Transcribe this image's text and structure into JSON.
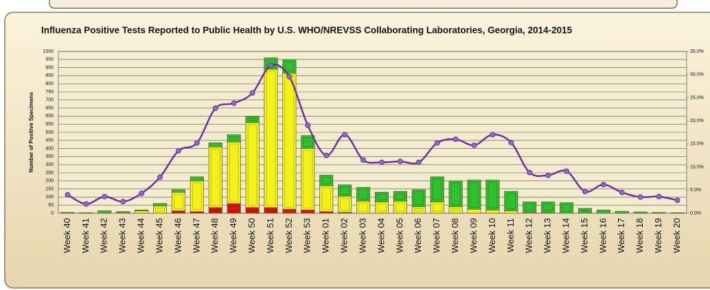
{
  "chart_data": {
    "type": "bar",
    "title": "Influenza Positive Tests Reported to Public Health by U.S. WHO/NREVSS Collaborating Laboratories, Georgia, 2014-2015",
    "y_label": "Number of Positive Specimens",
    "categories": [
      "Week 40",
      "Week 41",
      "Week 42",
      "Week 43",
      "Week 44",
      "Week 45",
      "Week 46",
      "Week 47",
      "Week 48",
      "Week 49",
      "Week 50",
      "Week 51",
      "Week 52",
      "Week 53",
      "Week 01",
      "Week 02",
      "Week 03",
      "Week 04",
      "Week 05",
      "Week 06",
      "Week 07",
      "Week 08",
      "Week 09",
      "Week 10",
      "Week 11",
      "Week 12",
      "Week 13",
      "Week 14",
      "Week 15",
      "Week 16",
      "Week 17",
      "Week 18",
      "Week 19",
      "Week 20"
    ],
    "stacked": true,
    "series": [
      {
        "color": "#e01010",
        "values": [
          0,
          0,
          0,
          0,
          0,
          0,
          15,
          10,
          35,
          60,
          35,
          35,
          25,
          20,
          10,
          5,
          0,
          0,
          0,
          0,
          0,
          0,
          0,
          0,
          0,
          0,
          0,
          0,
          0,
          0,
          0,
          0,
          0,
          0
        ]
      },
      {
        "color": "#f2f21a",
        "values": [
          0,
          0,
          0,
          5,
          15,
          45,
          115,
          190,
          375,
          380,
          525,
          855,
          840,
          380,
          160,
          100,
          75,
          70,
          75,
          40,
          70,
          40,
          25,
          20,
          15,
          5,
          5,
          0,
          0,
          0,
          0,
          0,
          0,
          0
        ]
      },
      {
        "color": "#2fbf2f",
        "values": [
          5,
          3,
          15,
          5,
          5,
          15,
          15,
          25,
          25,
          45,
          40,
          70,
          85,
          80,
          65,
          70,
          85,
          60,
          60,
          105,
          155,
          160,
          180,
          185,
          120,
          65,
          65,
          65,
          30,
          20,
          12,
          8,
          5,
          3
        ]
      },
      {
        "type": "line",
        "axis": "y2",
        "color": "#7030a0",
        "values": [
          4,
          2,
          3.6,
          2.5,
          4.3,
          7.8,
          13.5,
          15.2,
          22.7,
          23.8,
          26,
          32,
          29.5,
          19,
          12.5,
          17,
          11.5,
          11,
          11.2,
          11,
          15.2,
          16,
          14.7,
          17,
          15.3,
          8.8,
          8.2,
          9.1,
          4.7,
          6.2,
          4.5,
          3.5,
          3.6,
          2.8
        ]
      }
    ],
    "ylim": [
      0,
      1000
    ],
    "yticks": [
      0,
      50,
      100,
      150,
      200,
      250,
      300,
      350,
      400,
      450,
      500,
      550,
      600,
      650,
      700,
      750,
      800,
      850,
      900,
      950,
      1000
    ],
    "y2lim": [
      0,
      35
    ],
    "y2ticks": [
      {
        "value": 0,
        "label": "0.0%"
      },
      {
        "value": 5,
        "label": "5.0%"
      },
      {
        "value": 10,
        "label": "10.0%"
      },
      {
        "value": 15,
        "label": "15.0%"
      },
      {
        "value": 20,
        "label": "20.0%"
      },
      {
        "value": 25,
        "label": "25.0%"
      },
      {
        "value": 30,
        "label": "30.0%"
      },
      {
        "value": 35,
        "label": "35.0%"
      }
    ],
    "grid": true
  }
}
